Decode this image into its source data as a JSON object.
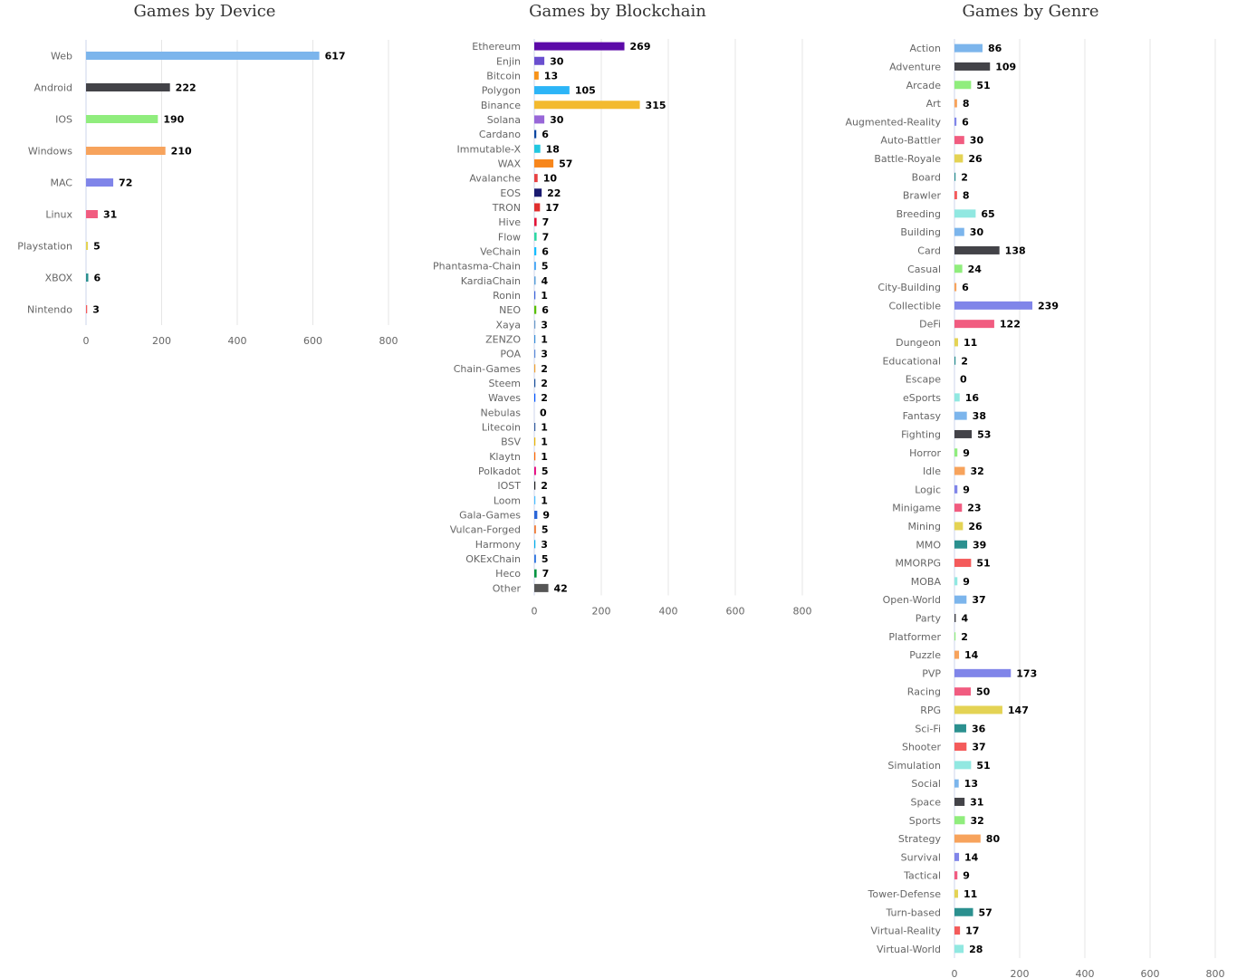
{
  "chart_data": [
    {
      "type": "bar",
      "orientation": "horizontal",
      "title": "Games by Device",
      "xlabel": "",
      "ylabel": "",
      "xlim": [
        0,
        800
      ],
      "xticks": [
        "0",
        "200",
        "400",
        "600",
        "800"
      ],
      "grid": true,
      "categories": [
        "Web",
        "Android",
        "IOS",
        "Windows",
        "MAC",
        "Linux",
        "Playstation",
        "XBOX",
        "Nintendo"
      ],
      "values": [
        617,
        222,
        190,
        210,
        72,
        31,
        5,
        6,
        3
      ],
      "colors": [
        "#7cb5ec",
        "#434348",
        "#90ed7d",
        "#f7a35c",
        "#8085e9",
        "#f15c80",
        "#e4d354",
        "#2b908f",
        "#f45b5b"
      ]
    },
    {
      "type": "bar",
      "orientation": "horizontal",
      "title": "Games by Blockchain",
      "xlabel": "",
      "ylabel": "",
      "xlim": [
        0,
        800
      ],
      "xticks": [
        "0",
        "200",
        "400",
        "600",
        "800"
      ],
      "grid": true,
      "categories": [
        "Ethereum",
        "Enjin",
        "Bitcoin",
        "Polygon",
        "Binance",
        "Solana",
        "Cardano",
        "Immutable-X",
        "WAX",
        "Avalanche",
        "EOS",
        "TRON",
        "Hive",
        "Flow",
        "VeChain",
        "Phantasma-Chain",
        "KardiaChain",
        "Ronin",
        "NEO",
        "Xaya",
        "ZENZO",
        "POA",
        "Chain-Games",
        "Steem",
        "Waves",
        "Nebulas",
        "Litecoin",
        "BSV",
        "Klaytn",
        "Polkadot",
        "IOST",
        "Loom",
        "Gala-Games",
        "Vulcan-Forged",
        "Harmony",
        "OKExChain",
        "Heco",
        "Other"
      ],
      "values": [
        269,
        30,
        13,
        105,
        315,
        30,
        6,
        18,
        57,
        10,
        22,
        17,
        7,
        7,
        6,
        5,
        4,
        1,
        6,
        3,
        1,
        3,
        2,
        2,
        2,
        0,
        1,
        1,
        1,
        5,
        2,
        1,
        9,
        5,
        3,
        5,
        7,
        42
      ],
      "colors": [
        "#5c0aa8",
        "#6a4fcf",
        "#f7931a",
        "#2cb5f7",
        "#f3ba2f",
        "#9867d8",
        "#0d47a1",
        "#21c7e0",
        "#f7861c",
        "#e84142",
        "#1a1a70",
        "#e02f2f",
        "#e31337",
        "#2ed8a3",
        "#15bdff",
        "#42a5f5",
        "#5aa0d8",
        "#3d64d9",
        "#58bf00",
        "#6a9ac8",
        "#3a8fd8",
        "#5c8ad8",
        "#f0a030",
        "#1a5099",
        "#0055ff",
        "#2a2a90",
        "#345d9d",
        "#eab300",
        "#ff6600",
        "#e6007a",
        "#1c1c1c",
        "#48beff",
        "#2a66d8",
        "#f07c3a",
        "#00aee9",
        "#2d74e0",
        "#01943f",
        "#555555"
      ]
    },
    {
      "type": "bar",
      "orientation": "horizontal",
      "title": "Games by Genre",
      "xlabel": "",
      "ylabel": "",
      "xlim": [
        0,
        800
      ],
      "xticks": [
        "0",
        "200",
        "400",
        "600",
        "800"
      ],
      "grid": true,
      "categories": [
        "Action",
        "Adventure",
        "Arcade",
        "Art",
        "Augmented-Reality",
        "Auto-Battler",
        "Battle-Royale",
        "Board",
        "Brawler",
        "Breeding",
        "Building",
        "Card",
        "Casual",
        "City-Building",
        "Collectible",
        "DeFi",
        "Dungeon",
        "Educational",
        "Escape",
        "eSports",
        "Fantasy",
        "Fighting",
        "Horror",
        "Idle",
        "Logic",
        "Minigame",
        "Mining",
        "MMO",
        "MMORPG",
        "MOBA",
        "Open-World",
        "Party",
        "Platformer",
        "Puzzle",
        "PVP",
        "Racing",
        "RPG",
        "Sci-Fi",
        "Shooter",
        "Simulation",
        "Social",
        "Space",
        "Sports",
        "Strategy",
        "Survival",
        "Tactical",
        "Tower-Defense",
        "Turn-based",
        "Virtual-Reality",
        "Virtual-World"
      ],
      "values": [
        86,
        109,
        51,
        8,
        6,
        30,
        26,
        2,
        8,
        65,
        30,
        138,
        24,
        6,
        239,
        122,
        11,
        2,
        0,
        16,
        38,
        53,
        9,
        32,
        9,
        23,
        26,
        39,
        51,
        9,
        37,
        4,
        2,
        14,
        173,
        50,
        147,
        36,
        37,
        51,
        13,
        31,
        32,
        80,
        14,
        9,
        11,
        57,
        17,
        28
      ],
      "colors": [
        "#7cb5ec",
        "#434348",
        "#90ed7d",
        "#f7a35c",
        "#8085e9",
        "#f15c80",
        "#e4d354",
        "#2b908f",
        "#f45b5b",
        "#91e8e1"
      ]
    }
  ]
}
